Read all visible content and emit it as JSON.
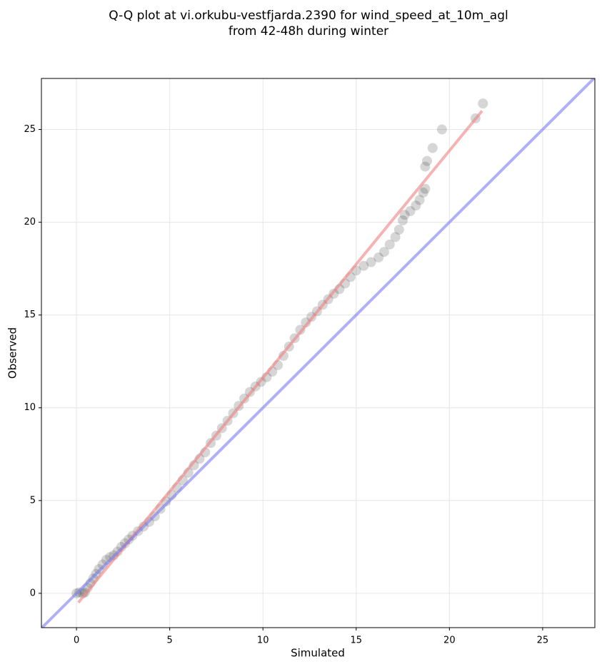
{
  "chart_data": {
    "type": "scatter",
    "title": [
      "Q-Q plot at vi.orkubu-vestfjarda.2390 for wind_speed_at_10m_agl",
      "from 42-48h during winter"
    ],
    "xlabel": "Simulated",
    "ylabel": "Observed",
    "xlim": [
      -1.88,
      27.8
    ],
    "ylim": [
      -1.85,
      27.75
    ],
    "xticks": [
      0,
      5,
      10,
      15,
      20,
      25
    ],
    "yticks": [
      0,
      5,
      10,
      15,
      20,
      25
    ],
    "grid": true,
    "series": [
      {
        "type": "scatter",
        "color": "#333333",
        "x": [
          0,
          0.15,
          0.35,
          0.45,
          0.6,
          0.75,
          0.9,
          1.05,
          1.2,
          1.4,
          1.6,
          1.8,
          2.0,
          2.2,
          2.4,
          2.6,
          2.8,
          3.0,
          3.3,
          3.6,
          3.9,
          4.2,
          4.5,
          4.8,
          5.1,
          5.4,
          5.7,
          6.0,
          6.3,
          6.6,
          6.9,
          7.2,
          7.5,
          7.8,
          8.1,
          8.4,
          8.7,
          9.0,
          9.3,
          9.6,
          9.9,
          10.2,
          10.5,
          10.8,
          11.1,
          11.4,
          11.7,
          12.0,
          12.3,
          12.6,
          12.9,
          13.2,
          13.5,
          13.8,
          14.1,
          14.4,
          14.7,
          15.0,
          15.4,
          15.8,
          16.2,
          16.5,
          16.8,
          17.1,
          17.3,
          17.5,
          17.6,
          17.9,
          18.2,
          18.4,
          18.6,
          18.7,
          18.7,
          18.8,
          19.1,
          19.6,
          21.4,
          21.8
        ],
        "values": [
          0,
          0.05,
          0.0,
          0.05,
          0.3,
          0.55,
          0.8,
          1.05,
          1.3,
          1.55,
          1.8,
          1.95,
          2.05,
          2.25,
          2.5,
          2.7,
          2.9,
          3.1,
          3.35,
          3.6,
          3.85,
          4.15,
          4.55,
          4.95,
          5.3,
          5.7,
          6.1,
          6.5,
          6.9,
          7.25,
          7.6,
          8.1,
          8.5,
          8.9,
          9.3,
          9.7,
          10.1,
          10.5,
          10.85,
          11.15,
          11.4,
          11.65,
          11.95,
          12.3,
          12.8,
          13.3,
          13.75,
          14.2,
          14.6,
          14.9,
          15.2,
          15.55,
          15.85,
          16.15,
          16.4,
          16.7,
          17.05,
          17.4,
          17.65,
          17.85,
          18.1,
          18.4,
          18.8,
          19.2,
          19.6,
          20.1,
          20.4,
          20.6,
          20.9,
          21.2,
          21.6,
          21.8,
          23.0,
          23.3,
          24.0,
          25.0,
          25.6,
          26.4
        ]
      },
      {
        "type": "line",
        "color": "#f08080",
        "x": [
          0.1,
          21.75
        ],
        "values": [
          -0.5,
          26.0
        ]
      },
      {
        "type": "line",
        "color": "#7b7bf0",
        "x": [
          -1.88,
          27.8
        ],
        "values": [
          -1.88,
          27.8
        ]
      }
    ]
  }
}
